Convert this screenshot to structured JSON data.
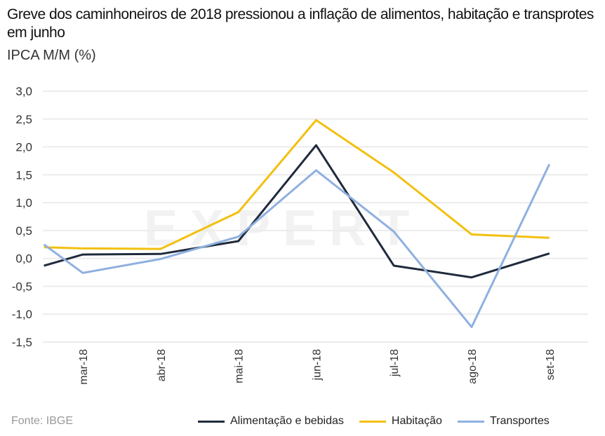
{
  "chart_data": {
    "type": "line",
    "title": "Greve dos caminhoneiros de 2018 pressionou a inflação de alimentos, habitação e transprotes em junho",
    "ylabel": "IPCA M/M (%)",
    "source": "Fonte: IBGE",
    "watermark": "EXPERT XP",
    "ylim": [
      -1.5,
      3.0
    ],
    "yticks": [
      "3,0",
      "2,5",
      "2,0",
      "1,5",
      "1,0",
      "0,5",
      "0,0",
      "-0,5",
      "-1,0",
      "-1,5"
    ],
    "ytick_values": [
      3.0,
      2.5,
      2.0,
      1.5,
      1.0,
      0.5,
      0.0,
      -0.5,
      -1.0,
      -1.5
    ],
    "categories": [
      "mar-18",
      "abr-18",
      "mai-18",
      "jun-18",
      "jul-18",
      "ago-18",
      "set-18"
    ],
    "x": [
      -0.5,
      0,
      1,
      2,
      3,
      4,
      5,
      6
    ],
    "grid": true,
    "legend_position": "bottom-right",
    "series": [
      {
        "name": "Alimentação e bebidas",
        "color": "#1f2a3c",
        "values": [
          -0.13,
          0.07,
          0.08,
          0.31,
          2.03,
          -0.13,
          -0.34,
          0.09
        ]
      },
      {
        "name": "Habitação",
        "color": "#f2c010",
        "values": [
          0.2,
          0.18,
          0.17,
          0.83,
          2.48,
          1.54,
          0.43,
          0.37
        ]
      },
      {
        "name": "Transportes",
        "color": "#8fb0e0",
        "values": [
          0.25,
          -0.26,
          -0.01,
          0.39,
          1.58,
          0.48,
          -1.23,
          1.69
        ]
      }
    ]
  }
}
